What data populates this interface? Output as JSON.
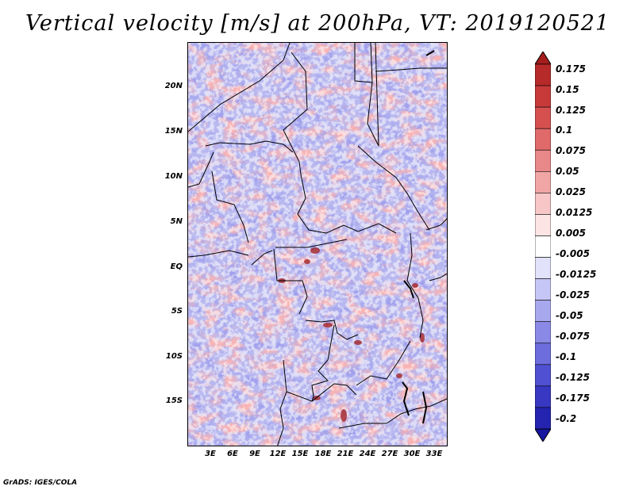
{
  "title": "Vertical velocity [m/s] at 200hPa, VT: 2019120521",
  "credit": "GrADS: IGES/COLA",
  "map": {
    "lat_ticks": [
      "20N",
      "15N",
      "10N",
      "5N",
      "EQ",
      "5S",
      "10S",
      "15S"
    ],
    "lon_ticks": [
      "3E",
      "6E",
      "9E",
      "12E",
      "15E",
      "18E",
      "21E",
      "24E",
      "27E",
      "30E",
      "33E"
    ],
    "lat_range": [
      -19,
      25
    ],
    "lon_range": [
      0.5,
      34.5
    ]
  },
  "colorbar": {
    "labels": [
      "0.175",
      "0.15",
      "0.125",
      "0.1",
      "0.075",
      "0.05",
      "0.025",
      "0.0125",
      "0.005",
      "-0.005",
      "-0.0125",
      "-0.025",
      "-0.05",
      "-0.075",
      "-0.1",
      "-0.125",
      "-0.175",
      "-0.2"
    ],
    "colors": [
      "#a51d1d",
      "#b72a2a",
      "#c83a3a",
      "#d65050",
      "#e06a6a",
      "#e98888",
      "#f1a6a6",
      "#f7c6c6",
      "#fce4e4",
      "#ffffff",
      "#e2e2fb",
      "#c6c6f6",
      "#a8a8ef",
      "#8a8ae6",
      "#6d6dde",
      "#5050d2",
      "#3838c2",
      "#2424b0",
      "#1616a0"
    ]
  }
}
